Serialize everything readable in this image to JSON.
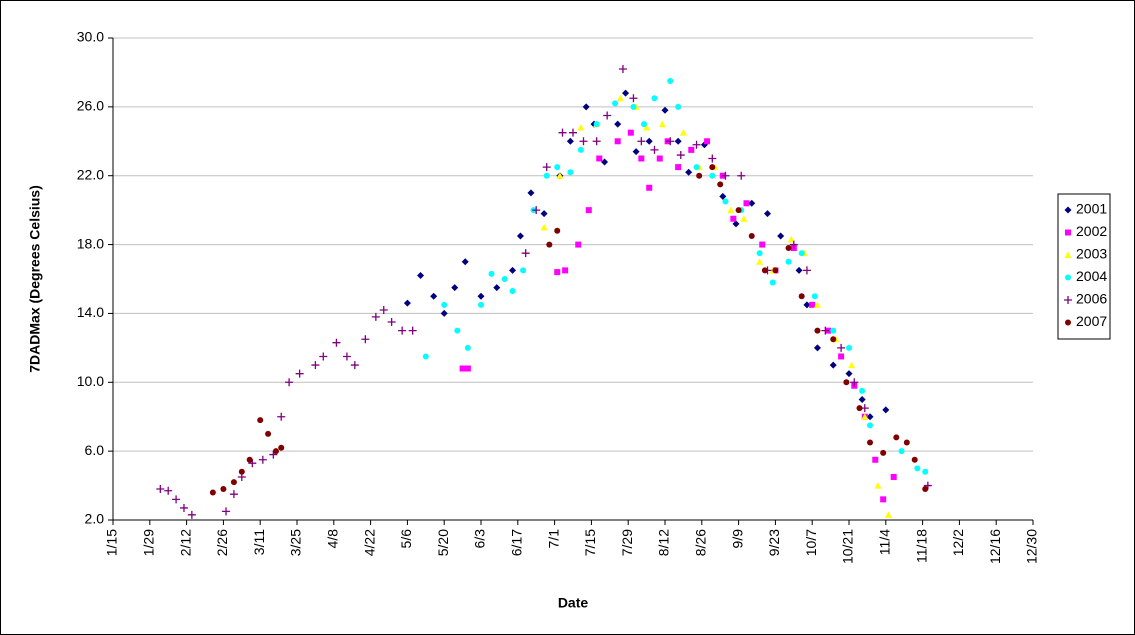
{
  "chart_data": {
    "type": "scatter",
    "x_label": "Date",
    "y_label": "7DADMax (Degrees Celsius)",
    "xlim": [
      15,
      365
    ],
    "xticks": [
      {
        "value": 15,
        "label": "1/15"
      },
      {
        "value": 29,
        "label": "1/29"
      },
      {
        "value": 43,
        "label": "2/12"
      },
      {
        "value": 57,
        "label": "2/26"
      },
      {
        "value": 71,
        "label": "3/11"
      },
      {
        "value": 85,
        "label": "3/25"
      },
      {
        "value": 99,
        "label": "4/8"
      },
      {
        "value": 113,
        "label": "4/22"
      },
      {
        "value": 127,
        "label": "5/6"
      },
      {
        "value": 141,
        "label": "5/20"
      },
      {
        "value": 155,
        "label": "6/3"
      },
      {
        "value": 169,
        "label": "6/17"
      },
      {
        "value": 183,
        "label": "7/1"
      },
      {
        "value": 197,
        "label": "7/15"
      },
      {
        "value": 211,
        "label": "7/29"
      },
      {
        "value": 225,
        "label": "8/12"
      },
      {
        "value": 239,
        "label": "8/26"
      },
      {
        "value": 253,
        "label": "9/9"
      },
      {
        "value": 267,
        "label": "9/23"
      },
      {
        "value": 281,
        "label": "10/7"
      },
      {
        "value": 295,
        "label": "10/21"
      },
      {
        "value": 309,
        "label": "11/4"
      },
      {
        "value": 323,
        "label": "11/18"
      },
      {
        "value": 337,
        "label": "12/2"
      },
      {
        "value": 351,
        "label": "12/16"
      },
      {
        "value": 365,
        "label": "12/30"
      }
    ],
    "ylim": [
      2,
      30
    ],
    "yticks": [
      {
        "value": 2,
        "label": "2.0"
      },
      {
        "value": 6,
        "label": "6.0"
      },
      {
        "value": 10,
        "label": "10.0"
      },
      {
        "value": 14,
        "label": "14.0"
      },
      {
        "value": 18,
        "label": "18.0"
      },
      {
        "value": 22,
        "label": "22.0"
      },
      {
        "value": 26,
        "label": "26.0"
      },
      {
        "value": 30,
        "label": "30.0"
      }
    ],
    "grid": true,
    "legend": "right",
    "series": [
      {
        "name": "2001",
        "color": "#000080",
        "marker": "diamond",
        "x": [
          127,
          132,
          137,
          141,
          145,
          149,
          155,
          161,
          167,
          170,
          174,
          179,
          185,
          189,
          195,
          198,
          202,
          207,
          210,
          214,
          219,
          225,
          230,
          234,
          240,
          247,
          252,
          258,
          264,
          269,
          276,
          279,
          283,
          289,
          295,
          300,
          303,
          309
        ],
        "values": [
          14.6,
          16.2,
          15,
          14,
          15.5,
          17,
          15,
          15.5,
          16.5,
          18.5,
          21,
          19.8,
          22,
          24,
          26,
          25,
          22.8,
          25,
          26.8,
          23.4,
          24,
          25.8,
          24,
          22.2,
          23.8,
          20.8,
          19.2,
          20.4,
          19.8,
          18.5,
          16.5,
          14.5,
          12,
          11,
          10.5,
          9,
          8,
          8.4
        ]
      },
      {
        "name": "2002",
        "color": "#ff00ff",
        "marker": "square",
        "x": [
          148,
          150,
          184,
          187,
          192,
          196,
          200,
          207,
          212,
          216,
          219,
          223,
          226,
          230,
          235,
          241,
          247,
          251,
          256,
          262,
          267,
          274,
          281,
          287,
          292,
          297,
          301,
          305,
          308,
          312
        ],
        "values": [
          10.8,
          10.8,
          16.4,
          16.5,
          18,
          20,
          23,
          24,
          24.5,
          23,
          21.3,
          23,
          24,
          22.5,
          23.5,
          24,
          22,
          19.5,
          20.4,
          18,
          16.5,
          17.8,
          14.5,
          13,
          11.5,
          9.8,
          8,
          5.5,
          3.2,
          4.5
        ]
      },
      {
        "name": "2003",
        "color": "#ffff00",
        "marker": "triangle",
        "x": [
          179,
          185,
          193,
          199,
          208,
          214,
          218,
          224,
          232,
          238,
          244,
          250,
          255,
          261,
          266,
          273,
          278,
          283,
          290,
          296,
          301,
          306,
          310
        ],
        "values": [
          19,
          22,
          24.8,
          25,
          26.5,
          26,
          24.8,
          25,
          24.5,
          22.5,
          22.5,
          20,
          19.5,
          17,
          16.5,
          18.3,
          17.5,
          14.5,
          12.5,
          11,
          8,
          4,
          2.3
        ]
      },
      {
        "name": "2004",
        "color": "#00ffff",
        "marker": "circle",
        "x": [
          134,
          141,
          146,
          150,
          155,
          159,
          164,
          167,
          171,
          175,
          180,
          184,
          189,
          193,
          199,
          206,
          213,
          217,
          221,
          227,
          230,
          237,
          243,
          248,
          254,
          261,
          266,
          272,
          277,
          282,
          289,
          295,
          300,
          303,
          315,
          321,
          324
        ],
        "values": [
          11.5,
          14.5,
          13,
          12,
          14.5,
          16.3,
          16,
          15.3,
          16.5,
          20,
          22,
          22.5,
          22.2,
          23.5,
          25,
          26.2,
          26,
          25,
          26.5,
          27.5,
          26,
          22.5,
          22,
          20.5,
          20,
          17.5,
          15.8,
          17,
          17.5,
          15,
          13,
          12,
          9.5,
          7.5,
          6,
          5,
          4.8
        ]
      },
      {
        "name": "2006",
        "color": "#800080",
        "marker": "plus",
        "x": [
          33,
          36,
          39,
          42,
          45,
          58,
          61,
          64,
          68,
          72,
          76,
          79,
          82,
          86,
          92,
          95,
          100,
          104,
          107,
          111,
          115,
          118,
          121,
          125,
          129,
          172,
          176,
          180,
          186,
          190,
          194,
          199,
          203,
          209,
          213,
          216,
          221,
          227,
          231,
          237,
          243,
          248,
          254,
          264,
          274,
          279,
          286,
          292,
          297,
          301,
          325
        ],
        "values": [
          3.8,
          3.7,
          3.2,
          2.7,
          2.3,
          2.5,
          3.5,
          4.5,
          5.3,
          5.5,
          5.8,
          8,
          10,
          10.5,
          11,
          11.5,
          12.3,
          11.5,
          11,
          12.5,
          13.8,
          14.2,
          13.5,
          13,
          13,
          17.5,
          20,
          22.5,
          24.5,
          24.5,
          24,
          24,
          25.5,
          28.2,
          26.5,
          24,
          23.5,
          24,
          23.2,
          23.8,
          23,
          22,
          22,
          16.5,
          18,
          16.5,
          13,
          12,
          10,
          8.5,
          4
        ]
      },
      {
        "name": "2007",
        "color": "#800000",
        "marker": "circle",
        "x": [
          53,
          57,
          61,
          64,
          67,
          71,
          74,
          77,
          79,
          181,
          184,
          238,
          243,
          246,
          253,
          258,
          263,
          267,
          272,
          277,
          283,
          289,
          294,
          299,
          303,
          308,
          313,
          317,
          320,
          324
        ],
        "values": [
          3.6,
          3.8,
          4.2,
          4.8,
          5.5,
          7.8,
          7,
          6,
          6.2,
          18,
          18.8,
          22,
          22.5,
          21.5,
          20,
          18.5,
          16.5,
          16.5,
          17.8,
          15,
          13,
          12.5,
          10,
          8.5,
          6.5,
          5.9,
          6.8,
          6.5,
          5.5,
          3.8
        ]
      }
    ]
  }
}
